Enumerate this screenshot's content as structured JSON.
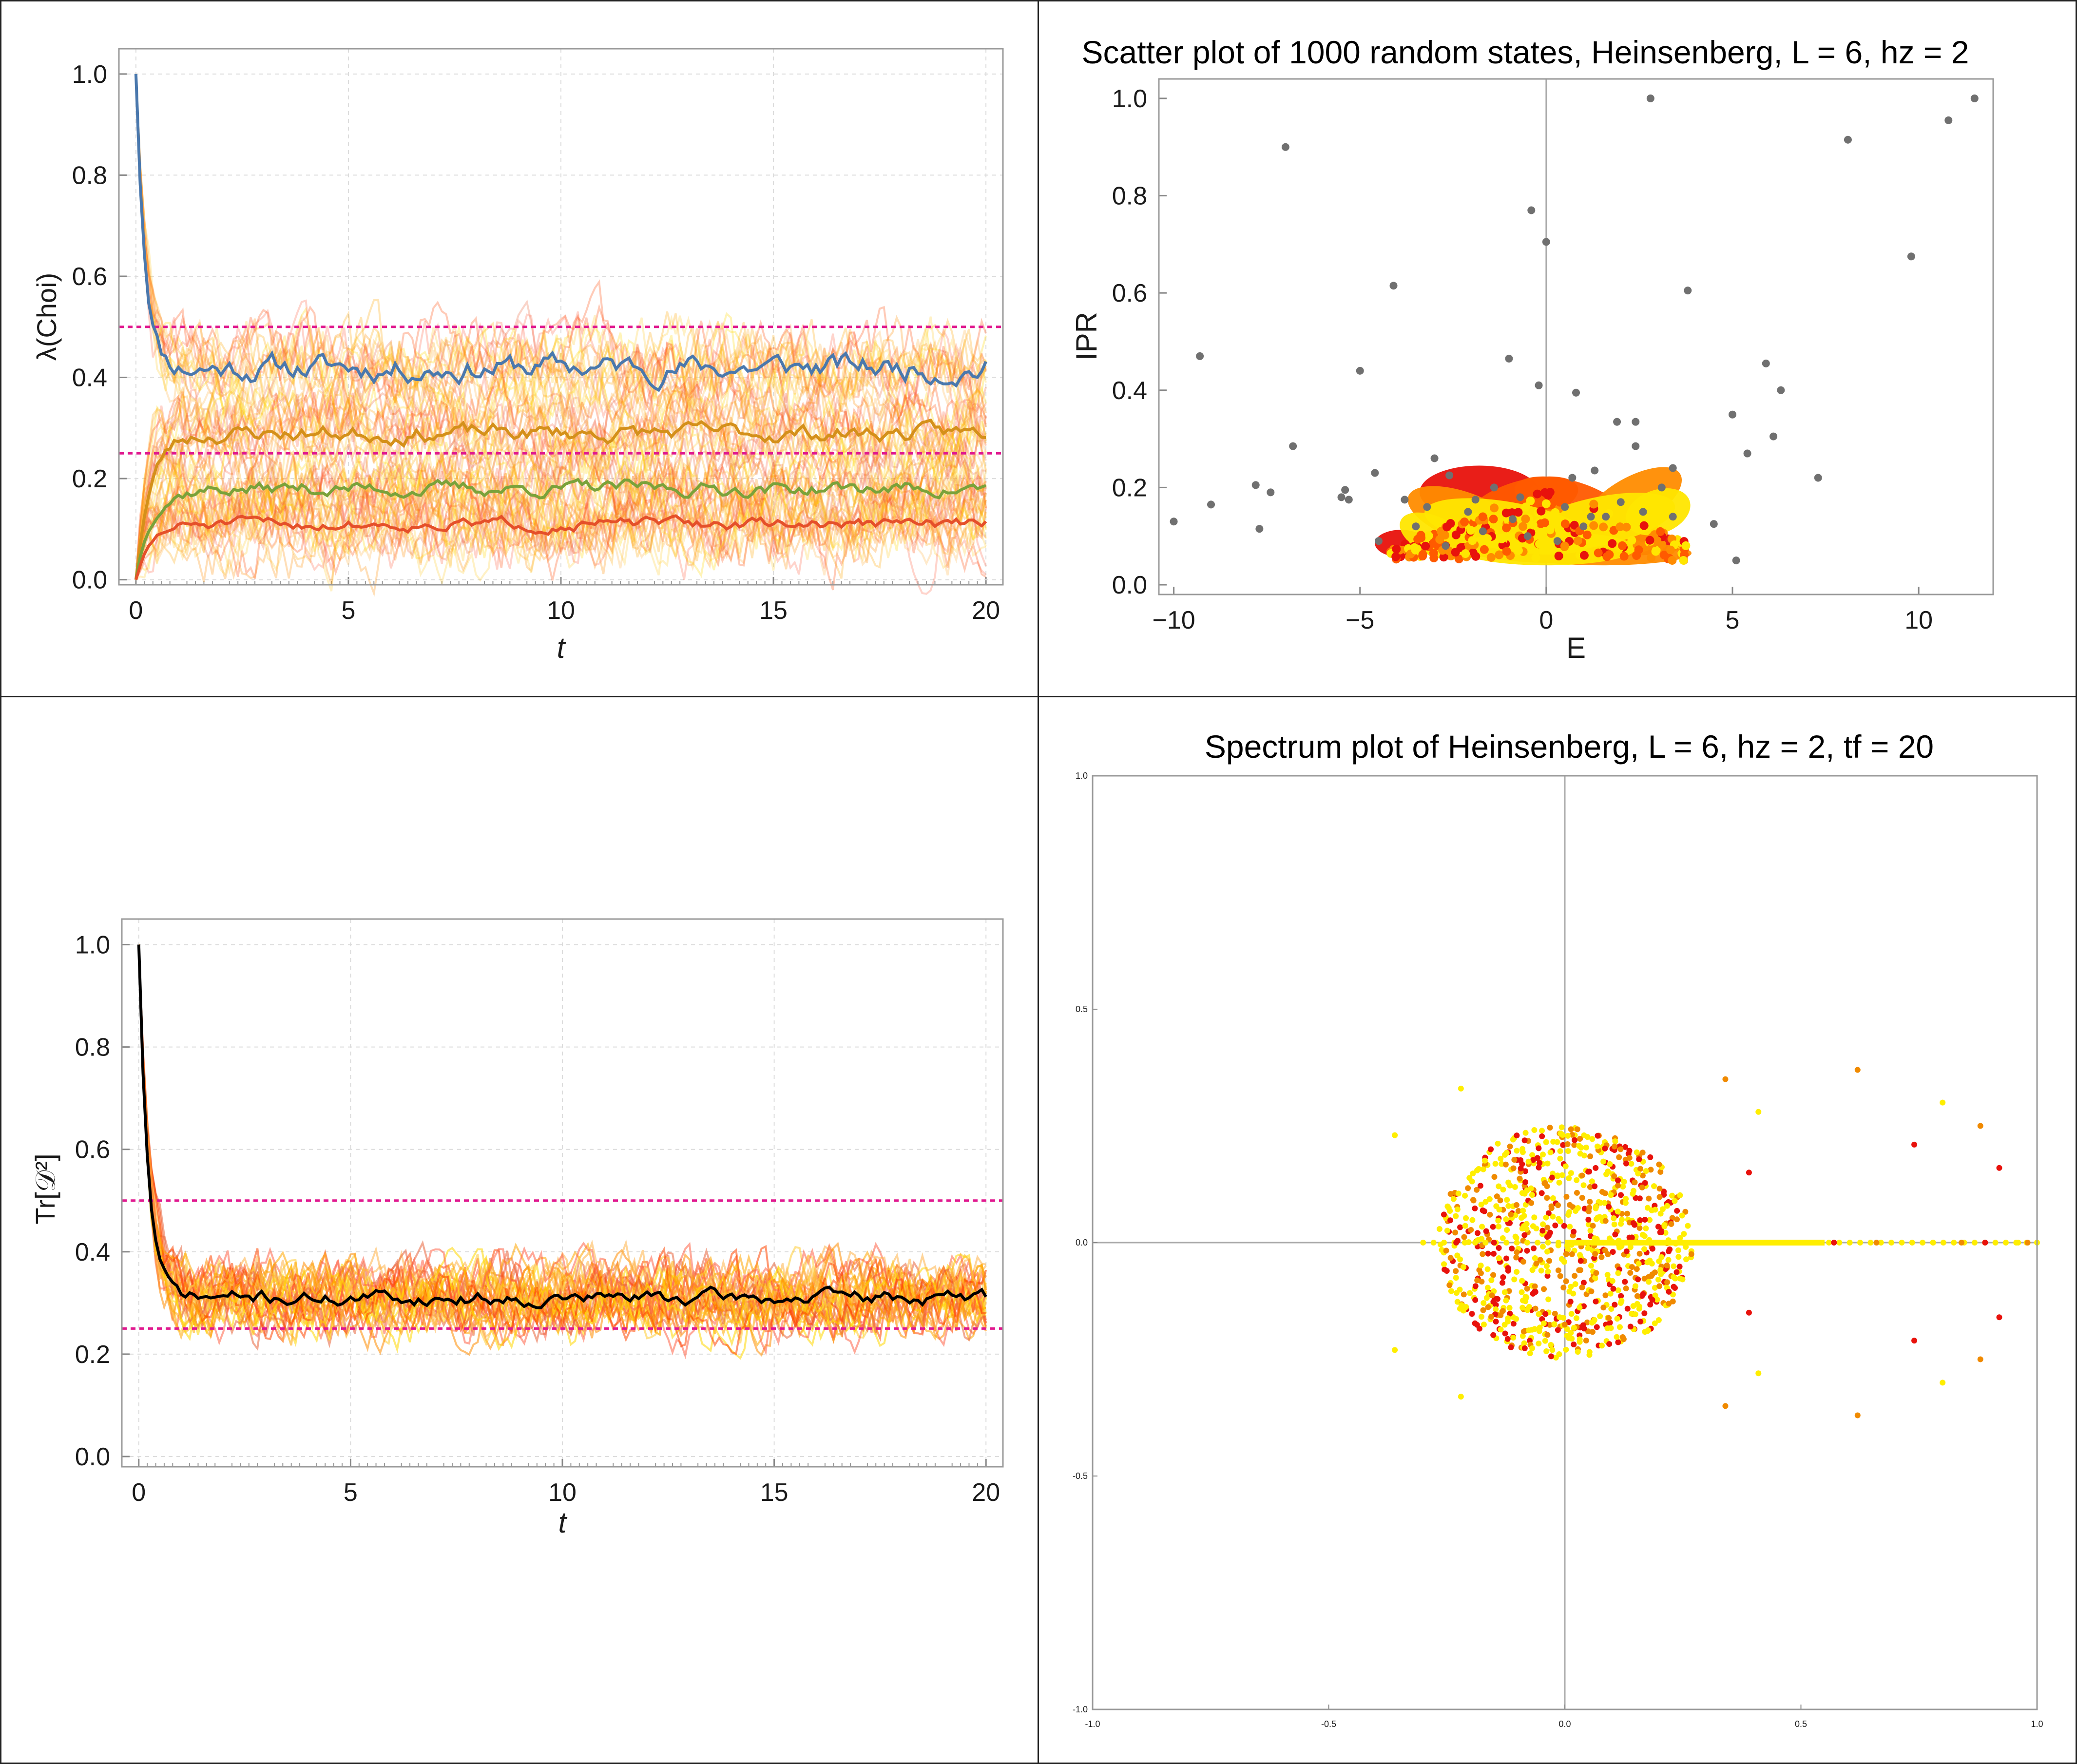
{
  "colors": {
    "background": "#ffffff",
    "frame": "#999999",
    "grid": "#dcdcdc",
    "reference_line": "#e0198f",
    "fan_colors": [
      "#ff8c00",
      "#ffa500",
      "#ff6347",
      "#ffd700",
      "#ff4500",
      "#ffb347",
      "#ffcc33",
      "#e8643c"
    ],
    "mean_blue": "#4a78ad",
    "mean_orange": "#d4901a",
    "mean_green": "#7aa23a",
    "mean_red": "#e5502a",
    "mean_black": "#000000",
    "scatter_gray": "#707070",
    "blob_red": "#e8120c",
    "blob_orange": "#ff8c00",
    "blob_orangered": "#ff5a00",
    "blob_yellow": "#ffe600",
    "spectrum_red": "#e8120c",
    "spectrum_orange": "#f08a00",
    "spectrum_yellow": "#ffee00"
  },
  "chart_data": [
    {
      "id": "top-left",
      "type": "line",
      "title": "",
      "xlabel": "t",
      "ylabel": "λ(Choi)",
      "xlim": [
        -0.4,
        20.4
      ],
      "ylim": [
        -0.01,
        1.05
      ],
      "xticks": [
        0,
        5,
        10,
        15,
        20
      ],
      "yticks": [
        0.0,
        0.2,
        0.4,
        0.6,
        0.8,
        1.0
      ],
      "ytick_labels": [
        "0.0",
        "0.2",
        "0.4",
        "0.6",
        "0.8",
        "1.0"
      ],
      "xtick_labels": [
        "0",
        "5",
        "10",
        "15",
        "20"
      ],
      "grid": true,
      "reference_lines": [
        0.5,
        0.25
      ],
      "series": [
        {
          "role": "mean-blue",
          "start": 1.0,
          "plateau": 0.42,
          "noise": 0.018,
          "seed": 11
        },
        {
          "role": "mean-orange",
          "start": 0.0,
          "plateau": 0.29,
          "noise": 0.012,
          "seed": 23
        },
        {
          "role": "mean-green",
          "start": 0.0,
          "plateau": 0.18,
          "noise": 0.01,
          "seed": 37
        },
        {
          "role": "mean-red",
          "start": 0.0,
          "plateau": 0.11,
          "noise": 0.008,
          "seed": 51
        }
      ],
      "fan_lines": 60
    },
    {
      "id": "top-right",
      "type": "scatter",
      "title": "Scatter plot of 1000 random states, Heinsenberg, L = 6, hz = 2",
      "xlabel": "E",
      "ylabel": "IPR",
      "xlim": [
        -10.4,
        12
      ],
      "ylim": [
        -0.02,
        1.04
      ],
      "xticks": [
        -10,
        -5,
        0,
        5,
        10
      ],
      "xtick_labels": [
        "−10",
        "−5",
        "0",
        "5",
        "10"
      ],
      "yticks": [
        0.0,
        0.2,
        0.4,
        0.6,
        0.8,
        1.0
      ],
      "ytick_labels": [
        "0.0",
        "0.2",
        "0.4",
        "0.6",
        "0.8",
        "1.0"
      ],
      "gray_points": [
        [
          -10,
          0.13
        ],
        [
          -9.3,
          0.47
        ],
        [
          -9,
          0.165
        ],
        [
          -7.8,
          0.205
        ],
        [
          -7.7,
          0.115
        ],
        [
          -7.4,
          0.19
        ],
        [
          -7,
          0.9
        ],
        [
          -6.8,
          0.285
        ],
        [
          -5.5,
          0.18
        ],
        [
          -5.3,
          0.175
        ],
        [
          -5.4,
          0.195
        ],
        [
          -5,
          0.44
        ],
        [
          -4.6,
          0.23
        ],
        [
          -4.5,
          0.09
        ],
        [
          -4.1,
          0.615
        ],
        [
          -3.8,
          0.175
        ],
        [
          -3,
          0.26
        ],
        [
          -2.6,
          0.225
        ],
        [
          -1.9,
          0.175
        ],
        [
          -1,
          0.465
        ],
        [
          -0.9,
          0.135
        ],
        [
          -0.5,
          0.1
        ],
        [
          -0.2,
          0.41
        ],
        [
          -1.4,
          0.2
        ],
        [
          -2.1,
          0.15
        ],
        [
          0,
          0.705
        ],
        [
          -0.4,
          0.77
        ],
        [
          0.8,
          0.395
        ],
        [
          0.7,
          0.22
        ],
        [
          1.2,
          0.14
        ],
        [
          1.3,
          0.235
        ],
        [
          1.6,
          0.14
        ],
        [
          1.9,
          0.335
        ],
        [
          2.4,
          0.335
        ],
        [
          2.4,
          0.285
        ],
        [
          2.8,
          1.0
        ],
        [
          2.6,
          0.15
        ],
        [
          3.1,
          0.2
        ],
        [
          3.4,
          0.14
        ],
        [
          3.4,
          0.24
        ],
        [
          3.8,
          0.605
        ],
        [
          4.5,
          0.125
        ],
        [
          5,
          0.35
        ],
        [
          5.1,
          0.05
        ],
        [
          5.4,
          0.27
        ],
        [
          5.9,
          0.455
        ],
        [
          6.1,
          0.305
        ],
        [
          6.3,
          0.4
        ],
        [
          7.3,
          0.22
        ],
        [
          8.1,
          0.915
        ],
        [
          9.8,
          0.675
        ],
        [
          10.8,
          0.955
        ],
        [
          11.5,
          1.0
        ],
        [
          -3.5,
          0.12
        ],
        [
          0.3,
          0.09
        ],
        [
          -1.7,
          0.11
        ],
        [
          1.0,
          0.12
        ],
        [
          -2.7,
          0.08
        ],
        [
          2.0,
          0.17
        ],
        [
          -0.7,
          0.18
        ],
        [
          -3.2,
          0.16
        ],
        [
          0.5,
          0.16
        ]
      ],
      "blobs": [
        {
          "color": "red",
          "cx": -1.8,
          "cy": 0.19,
          "rx": 1.6,
          "ry": 0.055,
          "rot": 0
        },
        {
          "color": "red",
          "cx": -3.9,
          "cy": 0.085,
          "rx": 0.7,
          "ry": 0.028,
          "rot": 0
        },
        {
          "color": "red",
          "cx": 2.2,
          "cy": 0.085,
          "rx": 1.6,
          "ry": 0.025,
          "rot": 0
        },
        {
          "color": "orangered",
          "cx": -0.6,
          "cy": 0.17,
          "rx": 1.5,
          "ry": 0.045,
          "rot": -15
        },
        {
          "color": "orangered",
          "cx": 0.6,
          "cy": 0.17,
          "rx": 1.5,
          "ry": 0.045,
          "rot": 15
        },
        {
          "color": "orange",
          "cx": 2.3,
          "cy": 0.17,
          "rx": 1.5,
          "ry": 0.05,
          "rot": -30
        },
        {
          "color": "orange",
          "cx": -2.2,
          "cy": 0.14,
          "rx": 1.6,
          "ry": 0.05,
          "rot": 20
        },
        {
          "color": "orange",
          "cx": 0.2,
          "cy": 0.1,
          "rx": 3.0,
          "ry": 0.055,
          "rot": 0
        },
        {
          "color": "orange",
          "cx": 1.5,
          "cy": 0.065,
          "rx": 2.4,
          "ry": 0.025,
          "rot": 0
        },
        {
          "color": "yellow",
          "cx": -1.0,
          "cy": 0.12,
          "rx": 2.3,
          "ry": 0.05,
          "rot": 10
        },
        {
          "color": "yellow",
          "cx": 1.4,
          "cy": 0.13,
          "rx": 2.1,
          "ry": 0.05,
          "rot": -12
        },
        {
          "color": "yellow",
          "cx": 0.0,
          "cy": 0.075,
          "rx": 2.4,
          "ry": 0.035,
          "rot": 0
        },
        {
          "color": "yellow",
          "cx": -3.0,
          "cy": 0.1,
          "rx": 1.0,
          "ry": 0.04,
          "rot": 25
        },
        {
          "color": "yellow",
          "cx": 3.0,
          "cy": 0.15,
          "rx": 0.9,
          "ry": 0.045,
          "rot": -20
        }
      ]
    },
    {
      "id": "bottom-left",
      "type": "line",
      "title": "",
      "xlabel": "t",
      "ylabel": "Tr[𝒟²]",
      "xlim": [
        -0.4,
        20.4
      ],
      "ylim": [
        -0.02,
        1.05
      ],
      "xticks": [
        0,
        5,
        10,
        15,
        20
      ],
      "xtick_labels": [
        "0",
        "5",
        "10",
        "15",
        "20"
      ],
      "yticks": [
        0.0,
        0.2,
        0.4,
        0.6,
        0.8,
        1.0
      ],
      "ytick_labels": [
        "0.0",
        "0.2",
        "0.4",
        "0.6",
        "0.8",
        "1.0"
      ],
      "grid": true,
      "reference_lines": [
        0.5,
        0.25
      ],
      "series": [
        {
          "role": "mean-black",
          "start": 1.0,
          "plateau": 0.31,
          "noise": 0.01,
          "seed": 71
        }
      ],
      "fan_lines": 30
    },
    {
      "id": "bottom-right",
      "type": "scatter",
      "title": "Spectrum plot of Heinsenberg, L = 6, hz = 2, tf = 20",
      "xlabel": "",
      "ylabel": "",
      "xlim": [
        -1.0,
        1.0
      ],
      "ylim": [
        -1.0,
        1.0
      ],
      "xticks": [
        -1.0,
        -0.5,
        0.0,
        0.5,
        1.0
      ],
      "xtick_labels": [
        "-1.0",
        "-0.5",
        "0.0",
        "0.5",
        "1.0"
      ],
      "yticks": [
        -1.0,
        -0.5,
        0.0,
        0.5,
        1.0
      ],
      "ytick_labels": [
        "-1.0",
        "-0.5",
        "0.0",
        "0.5",
        "1.0"
      ],
      "cloud": {
        "cx": 0.0,
        "rx": 0.27,
        "ry": 0.25,
        "count": 900,
        "seed": 97
      },
      "real_axis_points": {
        "from": -0.3,
        "to": 1.0,
        "count": 60
      },
      "outliers": [
        [
          0.34,
          0.35,
          "orange"
        ],
        [
          0.34,
          -0.35,
          "orange"
        ],
        [
          0.41,
          0.28,
          "yellow"
        ],
        [
          0.41,
          -0.28,
          "yellow"
        ],
        [
          0.62,
          0.37,
          "orange"
        ],
        [
          0.62,
          -0.37,
          "orange"
        ],
        [
          0.74,
          0.21,
          "red"
        ],
        [
          0.74,
          -0.21,
          "red"
        ],
        [
          0.8,
          0.3,
          "yellow"
        ],
        [
          0.8,
          -0.3,
          "yellow"
        ],
        [
          0.88,
          0.25,
          "orange"
        ],
        [
          0.88,
          -0.25,
          "orange"
        ],
        [
          0.92,
          0.16,
          "red"
        ],
        [
          0.92,
          -0.16,
          "red"
        ],
        [
          -0.36,
          0.23,
          "yellow"
        ],
        [
          -0.36,
          -0.23,
          "yellow"
        ],
        [
          -0.22,
          0.33,
          "yellow"
        ],
        [
          -0.22,
          -0.33,
          "yellow"
        ],
        [
          0.39,
          0.15,
          "red"
        ],
        [
          0.39,
          -0.15,
          "red"
        ],
        [
          0.57,
          0.0,
          "red"
        ],
        [
          0.66,
          0.0,
          "orange"
        ],
        [
          0.78,
          0.0,
          "yellow"
        ],
        [
          0.84,
          0.0,
          "orange"
        ],
        [
          0.89,
          0.0,
          "red"
        ],
        [
          0.96,
          0.0,
          "yellow"
        ],
        [
          0.98,
          0.0,
          "orange"
        ],
        [
          -0.23,
          0.0,
          "red"
        ],
        [
          -0.15,
          0.0,
          "red"
        ]
      ]
    }
  ]
}
